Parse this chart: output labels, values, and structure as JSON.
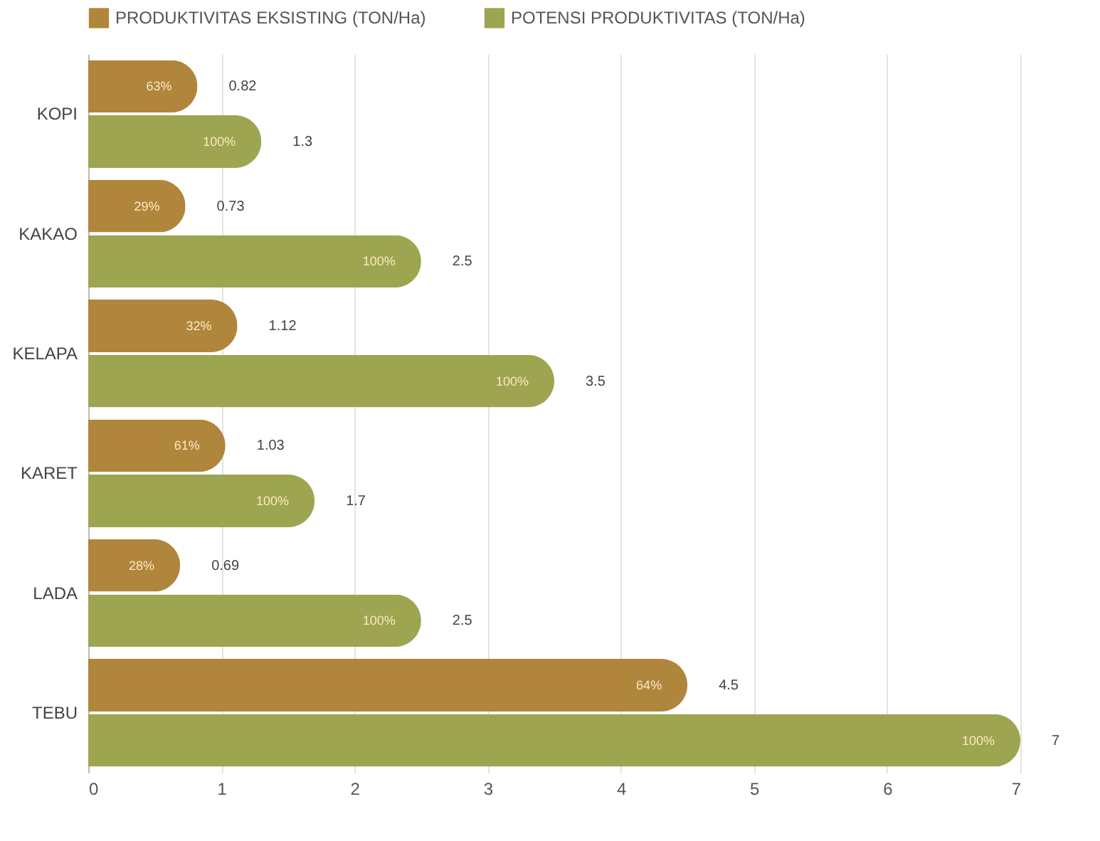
{
  "chart_data": {
    "type": "bar",
    "orientation": "horizontal",
    "categories": [
      "KOPI",
      "KAKAO",
      "KELAPA",
      "KARET",
      "LADA",
      "TEBU"
    ],
    "series": [
      {
        "name": "PRODUKTIVITAS EKSISTING (TON/Ha)",
        "color": "#b0863c",
        "values": [
          0.82,
          0.73,
          1.12,
          1.03,
          0.69,
          4.5
        ],
        "value_labels": [
          "0.82",
          "0.73",
          "1.12",
          "1.03",
          "0.69",
          "4.5"
        ]
      },
      {
        "name": "POTENSI PRODUKTIVITAS (TON/Ha)",
        "color": "#9da550",
        "values": [
          1.3,
          2.5,
          3.5,
          1.7,
          2.5,
          7
        ],
        "value_labels": [
          "1.3",
          "2.5",
          "3.5",
          "1.7",
          "2.5",
          "7"
        ]
      }
    ],
    "annotations": [
      {
        "text": "63%",
        "x": 0.82,
        "y": "KOPI"
      },
      {
        "text": "100%",
        "x": 1.3,
        "y": "KOPI"
      },
      {
        "text": "29%",
        "x": 0.73,
        "y": "KAKAO"
      },
      {
        "text": "100%",
        "x": 2.5,
        "y": "KAKAO"
      },
      {
        "text": "32%",
        "x": 1.12,
        "y": "KELAPA"
      },
      {
        "text": "100%",
        "x": 3.5,
        "y": "KELAPA"
      },
      {
        "text": "61%",
        "x": 1.03,
        "y": "KARET"
      },
      {
        "text": "100%",
        "x": 1.7,
        "y": "KARET"
      },
      {
        "text": "28%",
        "x": 0.69,
        "y": "LADA"
      },
      {
        "text": "100%",
        "x": 2.5,
        "y": "LADA"
      },
      {
        "text": "64%",
        "x": 4.5,
        "y": "TEBU"
      },
      {
        "text": "100%",
        "x": 7,
        "y": "TEBU"
      }
    ],
    "xlim": [
      0,
      7
    ],
    "xticks": [
      0,
      1,
      2,
      3,
      4,
      5,
      6,
      7
    ],
    "grid": "x",
    "legend": "top"
  }
}
